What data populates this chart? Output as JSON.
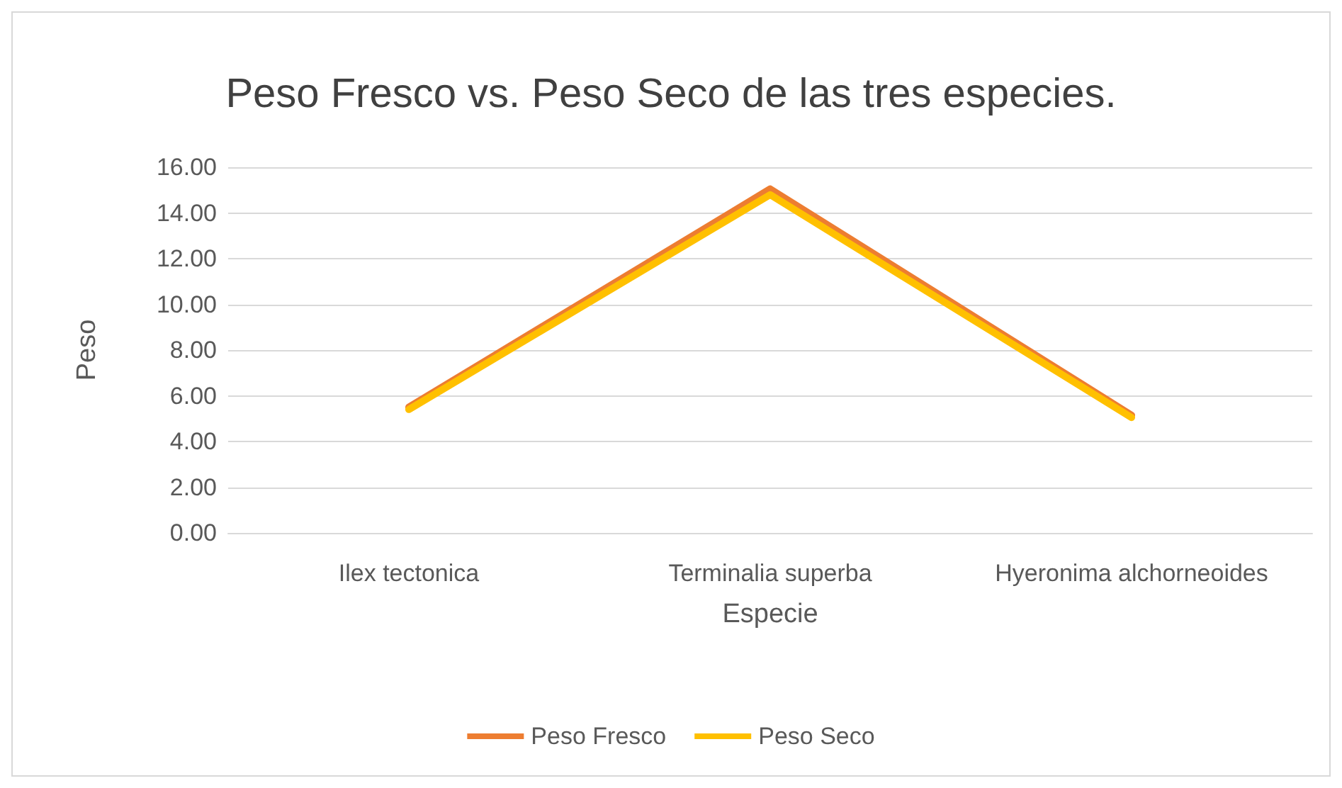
{
  "chart_data": {
    "type": "line",
    "title": "Peso Fresco vs. Peso Seco de las tres especies.",
    "xlabel": "Especie",
    "ylabel": "Peso",
    "categories": [
      "Ilex tectonica",
      "Terminalia superba",
      "Hyeronima alchorneoides"
    ],
    "series": [
      {
        "name": "Peso Fresco",
        "color": "#ed7d31",
        "values": [
          5.5,
          15.05,
          5.15
        ]
      },
      {
        "name": "Peso Seco",
        "color": "#ffc000",
        "values": [
          5.4,
          14.8,
          5.05
        ]
      }
    ],
    "ylim": [
      0,
      16
    ],
    "yticks": [
      {
        "value": 0,
        "label": "0.00"
      },
      {
        "value": 2,
        "label": "2.00"
      },
      {
        "value": 4,
        "label": "4.00"
      },
      {
        "value": 6,
        "label": "6.00"
      },
      {
        "value": 8,
        "label": "8.00"
      },
      {
        "value": 10,
        "label": "10.00"
      },
      {
        "value": 12,
        "label": "12.00"
      },
      {
        "value": 14,
        "label": "14.00"
      },
      {
        "value": 16,
        "label": "16.00"
      }
    ],
    "grid": "y",
    "legend": "bottom",
    "marker": "none",
    "line_style": "solid"
  }
}
